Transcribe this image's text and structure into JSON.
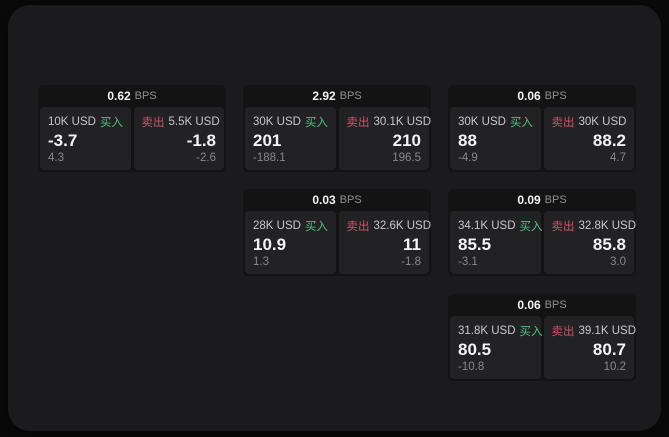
{
  "labels": {
    "bps_unit": "BPS",
    "buy": "买入",
    "sell": "卖出"
  },
  "colors": {
    "page_bg": "#0a0a0a",
    "panel_bg": "#1b1b1d",
    "card_bg": "#131314",
    "tile_bg": "#222224",
    "buy_accent": "#52c183",
    "sell_accent": "#cd5468"
  },
  "cards": [
    {
      "bps": "0.62",
      "row": 0,
      "col": 0,
      "buy": {
        "amount": "10K USD",
        "value": "-3.7",
        "delta": "4.3"
      },
      "sell": {
        "amount": "5.5K USD",
        "value": "-1.8",
        "delta": "-2.6"
      }
    },
    {
      "bps": "2.92",
      "row": 0,
      "col": 1,
      "buy": {
        "amount": "30K USD",
        "value": "201",
        "delta": "-188.1"
      },
      "sell": {
        "amount": "30.1K USD",
        "value": "210",
        "delta": "196.5"
      }
    },
    {
      "bps": "0.06",
      "row": 0,
      "col": 2,
      "buy": {
        "amount": "30K USD",
        "value": "88",
        "delta": "-4.9"
      },
      "sell": {
        "amount": "30K USD",
        "value": "88.2",
        "delta": "4.7"
      }
    },
    {
      "bps": "0.03",
      "row": 1,
      "col": 1,
      "buy": {
        "amount": "28K USD",
        "value": "10.9",
        "delta": "1.3"
      },
      "sell": {
        "amount": "32.6K USD",
        "value": "11",
        "delta": "-1.8"
      }
    },
    {
      "bps": "0.09",
      "row": 1,
      "col": 2,
      "buy": {
        "amount": "34.1K USD",
        "value": "85.5",
        "delta": "-3.1"
      },
      "sell": {
        "amount": "32.8K USD",
        "value": "85.8",
        "delta": "3.0"
      }
    },
    {
      "bps": "0.06",
      "row": 2,
      "col": 2,
      "buy": {
        "amount": "31.8K USD",
        "value": "80.5",
        "delta": "-10.8"
      },
      "sell": {
        "amount": "39.1K USD",
        "value": "80.7",
        "delta": "10.2"
      }
    }
  ]
}
